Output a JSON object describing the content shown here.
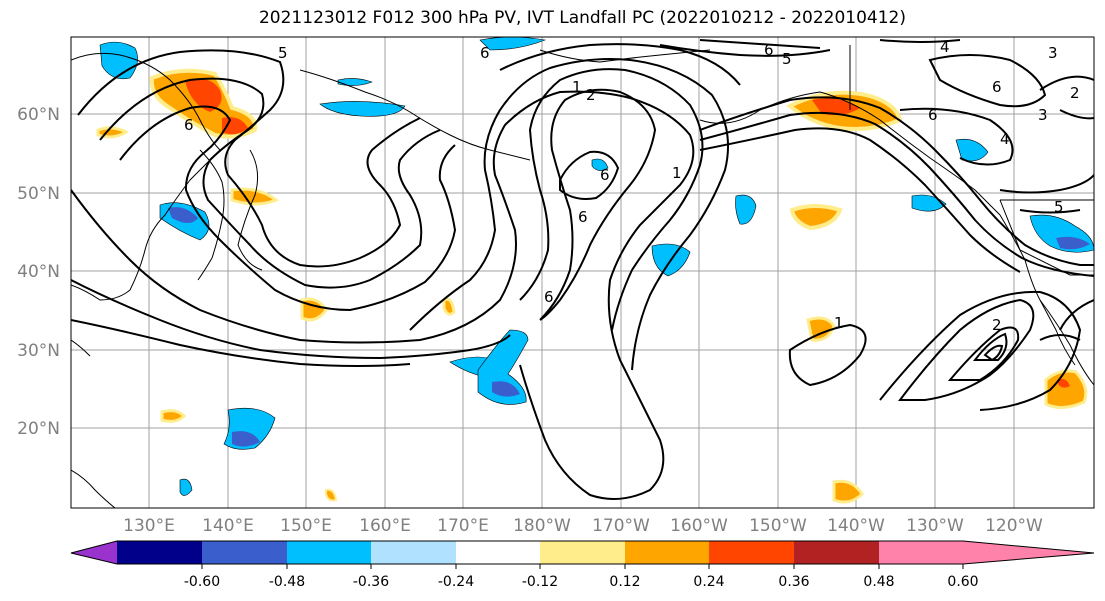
{
  "title": "2021123012 F012 300 hPa PV, IVT Landfall PC (2022010212 - 2022010412)",
  "lat_labels": [
    "60°N",
    "50°N",
    "40°N",
    "30°N",
    "20°N"
  ],
  "lon_labels": [
    "130°E",
    "140°E",
    "150°E",
    "160°E",
    "170°E",
    "180°W",
    "170°W",
    "160°W",
    "150°W",
    "140°W",
    "130°W",
    "120°W"
  ],
  "colorbar": {
    "colors": [
      "#9a32cd",
      "#00008b",
      "#3a5fcd",
      "#00bfff",
      "#b0e2ff",
      "#ffffff",
      "#ffec8b",
      "#ffa500",
      "#ff4500",
      "#b22222",
      "#ff82ab"
    ],
    "tick_labels": [
      "-0.60",
      "-0.48",
      "-0.36",
      "-0.24",
      "-0.12",
      "0.12",
      "0.24",
      "0.36",
      "0.48",
      "0.60"
    ]
  },
  "contour_labels": [
    "5",
    "6",
    "4",
    "5",
    "6",
    "6",
    "3",
    "1",
    "2",
    "6",
    "6",
    "6",
    "6",
    "1",
    "1",
    "5",
    "2",
    "4",
    "3",
    "6",
    "2"
  ],
  "legend_colors": {
    "negative": "#00bfff",
    "negative_strong": "#3a5fcd",
    "positive": "#ffa500",
    "positive_strong": "#ff4500",
    "contour": "#000000",
    "grid": "#999999",
    "coast": "#000000"
  }
}
